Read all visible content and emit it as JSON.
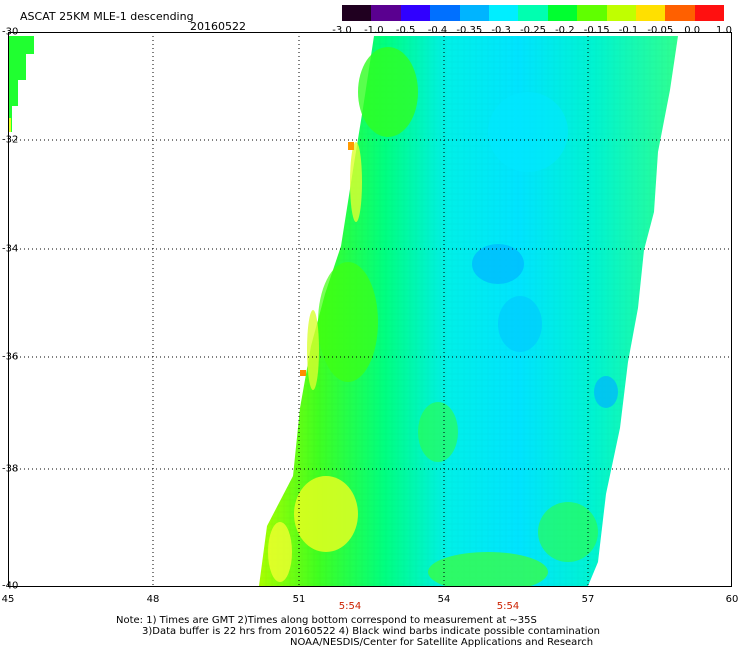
{
  "title": "ASCAT 25KM MLE-1 descending",
  "date": "20160522",
  "colorbar": {
    "labels": [
      "-3.0",
      "-1.0",
      "-0.5",
      "-0.4",
      "-0.35",
      "-0.3",
      "-0.25",
      "-0.2",
      "-0.15",
      "-0.1",
      "-0.05",
      "0.0",
      "1.0"
    ],
    "colors": [
      "#200020",
      "#5a0090",
      "#3000ff",
      "#0070ff",
      "#00b4ff",
      "#00eeff",
      "#00ffb0",
      "#00ff30",
      "#60ff00",
      "#c0ff00",
      "#ffe000",
      "#ff6000",
      "#ff1010"
    ]
  },
  "axes": {
    "lat_labels": [
      "-30",
      "-32",
      "-34",
      "-36",
      "-38",
      "-40"
    ],
    "lon_labels": [
      "45",
      "48",
      "51",
      "54",
      "57",
      "60"
    ]
  },
  "time_labels": [
    "5:54",
    "5:54"
  ],
  "note": {
    "line1": "Note: 1) Times are GMT 2)Times along bottom correspond to measurement at ~35S",
    "line2": "3)Data buffer is 22 hrs from 20160522 4) Black wind barbs indicate possible contamination",
    "line3": "NOAA/NESDIS/Center for Satellite Applications and Research"
  }
}
